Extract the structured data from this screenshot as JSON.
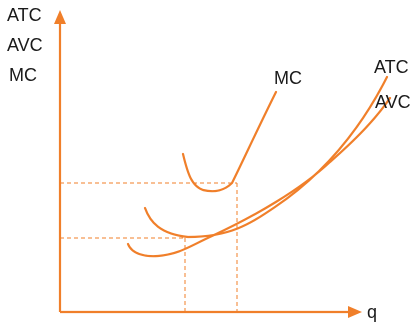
{
  "chart_data": {
    "type": "line",
    "ylabel_lines": [
      "ATC",
      "AVC",
      "MC"
    ],
    "xlabel": "q",
    "grid": false,
    "legend": "none",
    "series": [
      {
        "name": "MC",
        "label": "MC",
        "curve_shape": "convex, rising steeply after its minimum",
        "points": [
          [
            183,
            154
          ],
          [
            188,
            183
          ],
          [
            200,
            221
          ],
          [
            222,
            213
          ],
          [
            238,
            175
          ],
          [
            256,
            131
          ],
          [
            276,
            92
          ]
        ]
      },
      {
        "name": "ATC",
        "label": "ATC",
        "curve_shape": "U-shaped, minimum where MC crosses it",
        "points": [
          [
            145,
            210
          ],
          [
            162,
            223
          ],
          [
            188,
            236
          ],
          [
            250,
            220
          ],
          [
            310,
            175
          ],
          [
            387,
            77
          ]
        ]
      },
      {
        "name": "AVC",
        "label": "AVC",
        "curve_shape": "U-shaped, below ATC, minimum where MC crosses it",
        "points": [
          [
            128,
            245
          ],
          [
            150,
            256
          ],
          [
            188,
            250
          ],
          [
            260,
            205
          ],
          [
            330,
            155
          ],
          [
            390,
            100
          ]
        ]
      }
    ],
    "guides": {
      "atc_min": {
        "x": 237,
        "y": 183
      },
      "avc_min": {
        "x": 185,
        "y": 238
      }
    },
    "colors": {
      "curves": "#f07f2a",
      "labels": "#1a1a1a"
    }
  }
}
